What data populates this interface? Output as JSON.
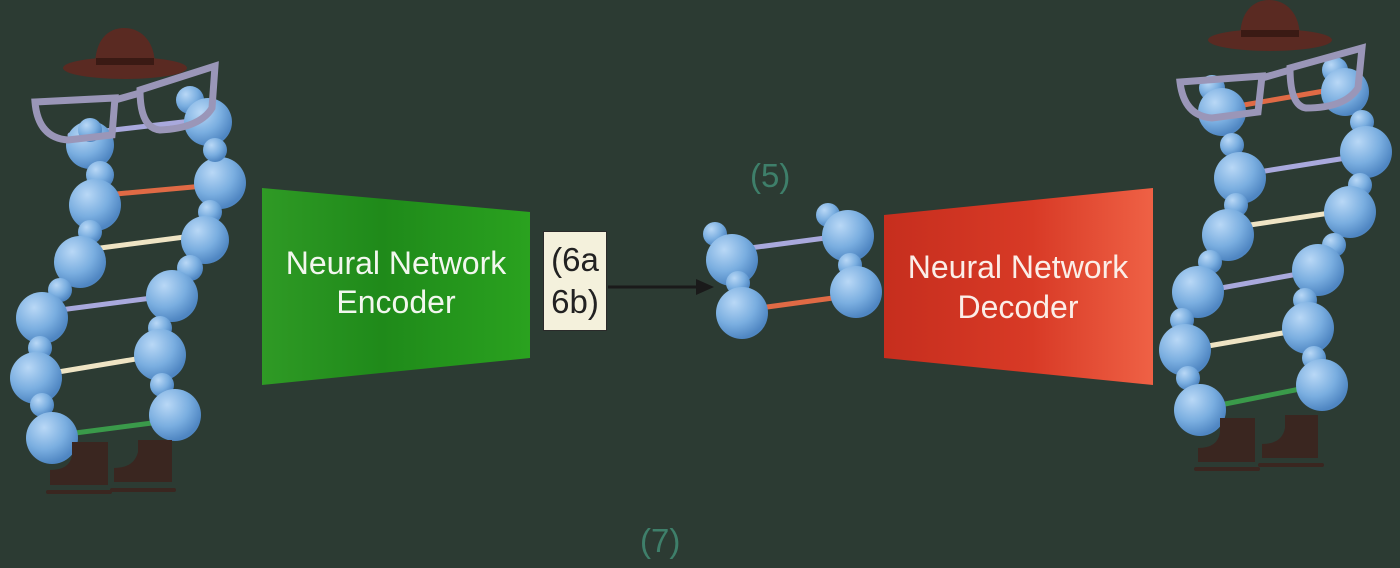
{
  "encoder": {
    "line1": "Neural Network",
    "line2": "Encoder",
    "color_start": "#2f9a25",
    "color_end": "#2aa21f"
  },
  "decoder": {
    "line1": "Neural Network",
    "line2": "Decoder",
    "color_start": "#c62e1e",
    "color_end": "#ef6145"
  },
  "latent_box": {
    "line1": "(6a",
    "line2": "6b)"
  },
  "labels": {
    "latent_step": "(5)",
    "bottom_step": "(7)"
  },
  "colors": {
    "background": "#2c3b33",
    "sphere": "#7aaee0",
    "rung_green": "#3a9a4a",
    "rung_orange": "#e06a45",
    "rung_cream": "#efe4c4",
    "rung_lavender": "#a9a9dd",
    "hat": "#5a2a22",
    "glasses": "#9a96b8",
    "skates": "#3a2620"
  },
  "icons": [
    "dna-input-icon",
    "cowboy-hat-icon",
    "glasses-icon",
    "ice-skates-icon",
    "dna-latent-icon",
    "dna-output-icon",
    "arrow-icon"
  ]
}
